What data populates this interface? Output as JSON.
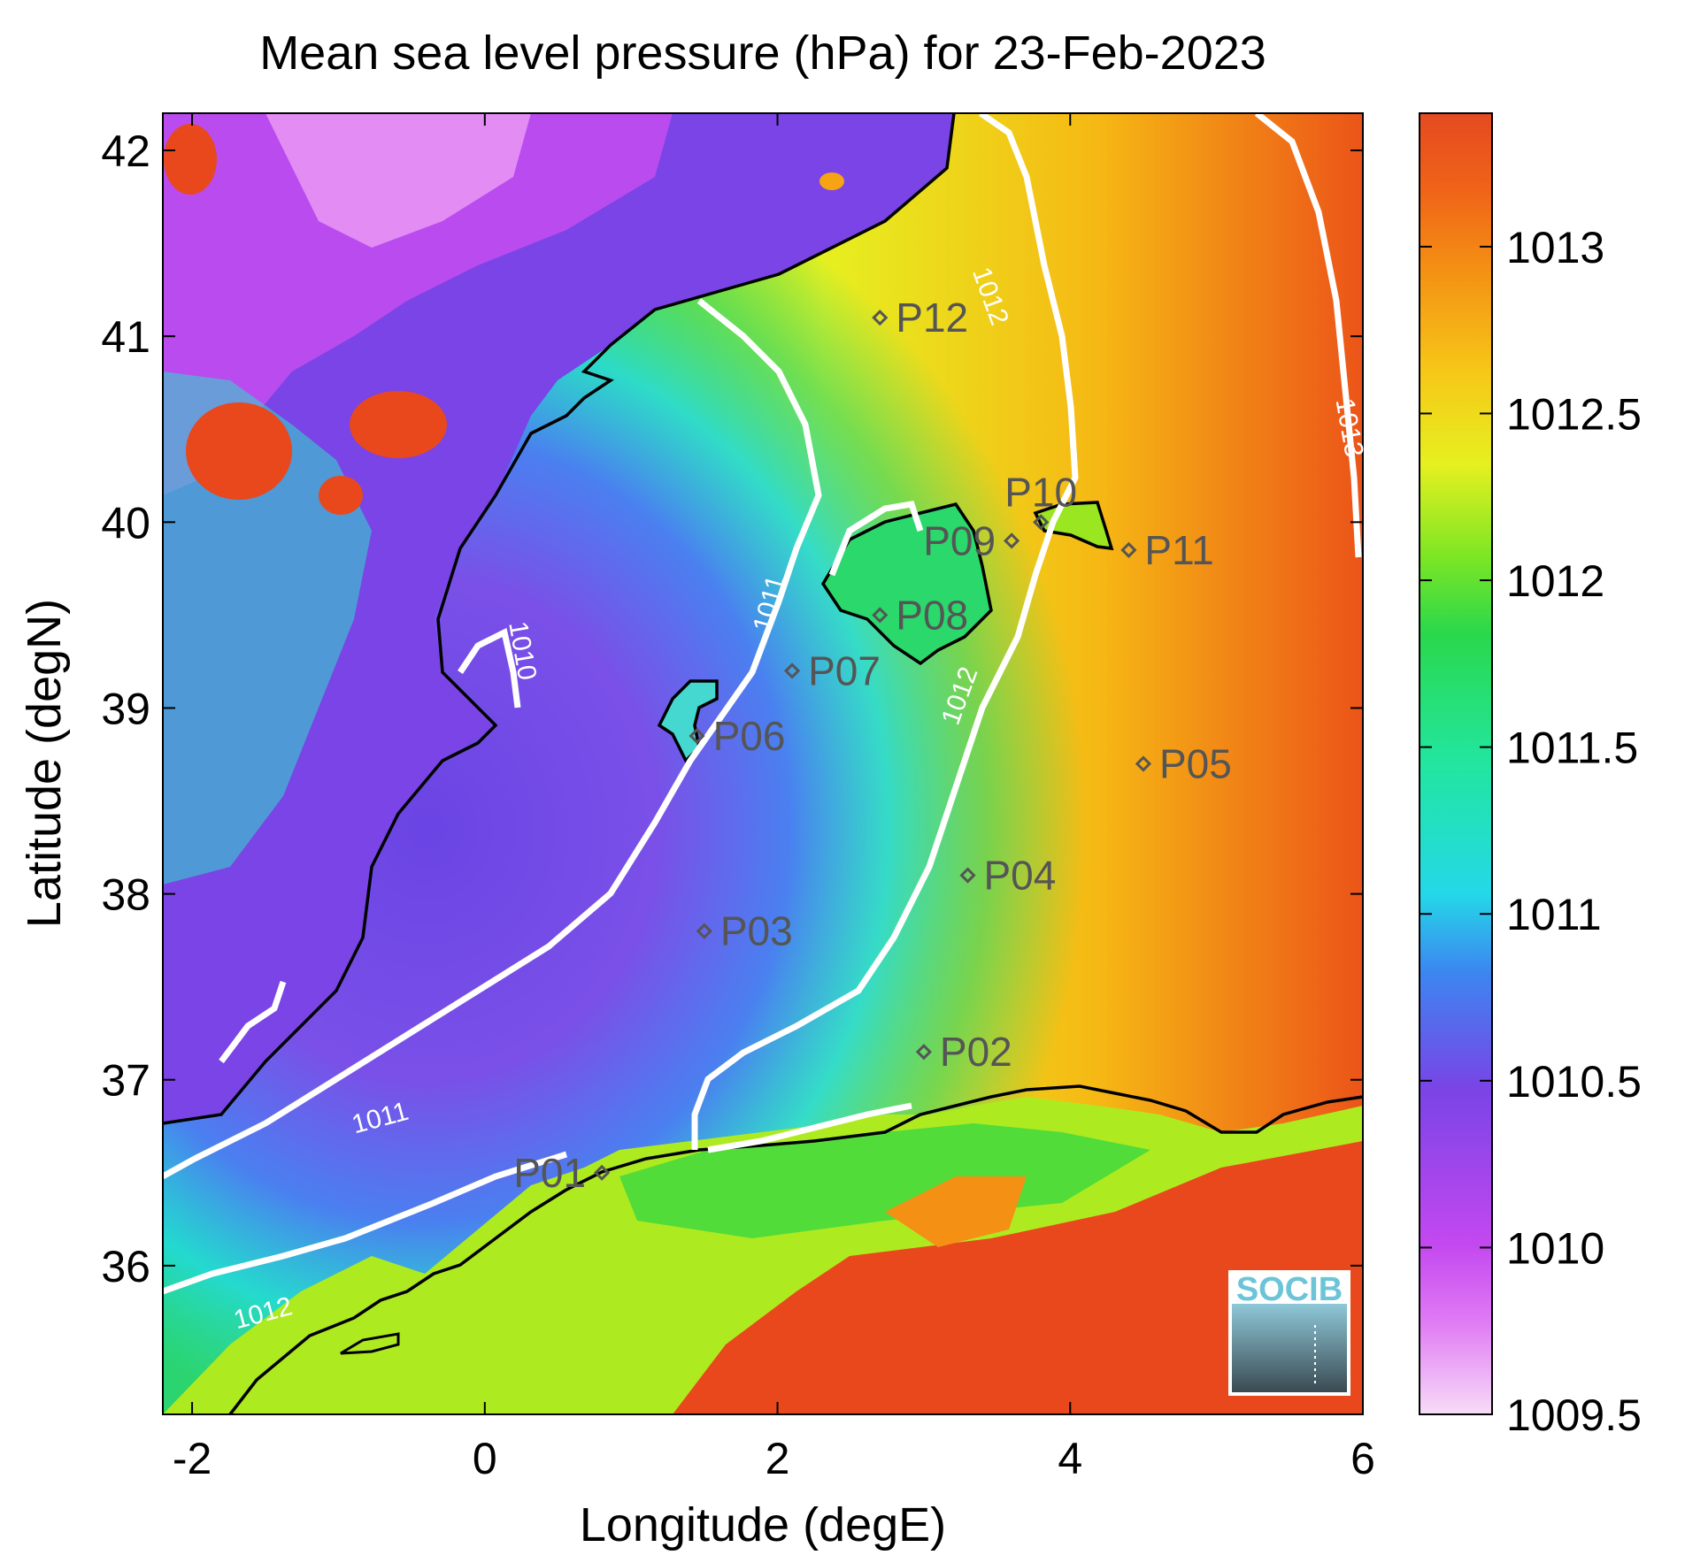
{
  "title": "Mean sea level pressure (hPa) for 23-Feb-2023",
  "x_axis": {
    "label": "Longitude (degE)",
    "range": [
      -2.2,
      6.0
    ],
    "ticks": [
      {
        "value": -2,
        "text": "-2"
      },
      {
        "value": 0,
        "text": "0"
      },
      {
        "value": 2,
        "text": "2"
      },
      {
        "value": 4,
        "text": "4"
      },
      {
        "value": 6,
        "text": "6"
      }
    ]
  },
  "y_axis": {
    "label": "Latitude (degN)",
    "range": [
      35.2,
      42.2
    ],
    "ticks": [
      {
        "value": 36,
        "text": "36"
      },
      {
        "value": 37,
        "text": "37"
      },
      {
        "value": 38,
        "text": "38"
      },
      {
        "value": 39,
        "text": "39"
      },
      {
        "value": 40,
        "text": "40"
      },
      {
        "value": 41,
        "text": "41"
      },
      {
        "value": 42,
        "text": "42"
      }
    ]
  },
  "colorbar": {
    "range": [
      1009.5,
      1013.4
    ],
    "ticks": [
      {
        "value": 1009.5,
        "text": "1009.5"
      },
      {
        "value": 1010,
        "text": "1010"
      },
      {
        "value": 1010.5,
        "text": "1010.5"
      },
      {
        "value": 1011,
        "text": "1011"
      },
      {
        "value": 1011.5,
        "text": "1011.5"
      },
      {
        "value": 1012,
        "text": "1012"
      },
      {
        "value": 1012.5,
        "text": "1012.5"
      },
      {
        "value": 1013,
        "text": "1013"
      }
    ],
    "colors": [
      "#f4d0f4",
      "#c44cf0",
      "#7a44e6",
      "#3a8cf0",
      "#22e6d8",
      "#2ad470",
      "#3ad82c",
      "#aaea18",
      "#f0f020",
      "#f6b214",
      "#f06a14",
      "#e44420"
    ]
  },
  "contour_labels": [
    {
      "text": "1010",
      "lon": 0.2,
      "lat": 39.3,
      "angle": 80
    },
    {
      "text": "1011",
      "lon": 2.0,
      "lat": 39.55,
      "angle": -75
    },
    {
      "text": "1011",
      "lon": -0.7,
      "lat": 36.75,
      "angle": -15
    },
    {
      "text": "1012",
      "lon": 3.4,
      "lat": 41.2,
      "angle": 70
    },
    {
      "text": "1012",
      "lon": 3.3,
      "lat": 39.05,
      "angle": -70
    },
    {
      "text": "1012",
      "lon": -1.5,
      "lat": 35.7,
      "angle": -15
    },
    {
      "text": "1013",
      "lon": 5.85,
      "lat": 40.5,
      "angle": 80
    }
  ],
  "stations": [
    {
      "id": "P01",
      "lon": 0.8,
      "lat": 36.5,
      "label_side": "left"
    },
    {
      "id": "P02",
      "lon": 3.0,
      "lat": 37.15,
      "label_side": "right"
    },
    {
      "id": "P03",
      "lon": 1.5,
      "lat": 37.8,
      "label_side": "right"
    },
    {
      "id": "P04",
      "lon": 3.3,
      "lat": 38.1,
      "label_side": "right"
    },
    {
      "id": "P05",
      "lon": 4.5,
      "lat": 38.7,
      "label_side": "right"
    },
    {
      "id": "P06",
      "lon": 1.45,
      "lat": 38.85,
      "label_side": "right"
    },
    {
      "id": "P07",
      "lon": 2.1,
      "lat": 39.2,
      "label_side": "right"
    },
    {
      "id": "P08",
      "lon": 2.7,
      "lat": 39.5,
      "label_side": "right"
    },
    {
      "id": "P09",
      "lon": 3.6,
      "lat": 39.9,
      "label_side": "left"
    },
    {
      "id": "P10",
      "lon": 3.8,
      "lat": 40.0,
      "label_side": "top"
    },
    {
      "id": "P11",
      "lon": 4.4,
      "lat": 39.85,
      "label_side": "right"
    },
    {
      "id": "P12",
      "lon": 2.7,
      "lat": 41.1,
      "label_side": "right"
    }
  ],
  "logo_text": "SOCIB"
}
